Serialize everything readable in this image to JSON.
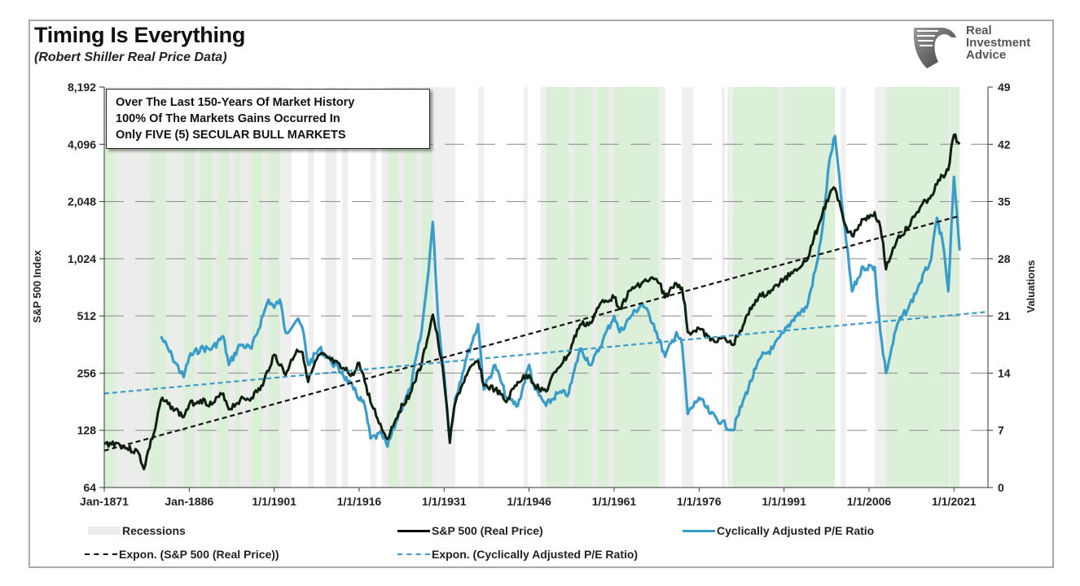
{
  "header": {
    "title": "Timing Is Everything",
    "subtitle": "(Robert Shiller Real Price Data)"
  },
  "logo": {
    "line1": "Real",
    "line2": "Investment",
    "line3": "Advice"
  },
  "annotation": {
    "line1": "Over The Last 150-Years Of Market History",
    "line2": "100% Of The Markets Gains Occurred In",
    "line3": "Only FIVE (5) SECULAR BULL MARKETS"
  },
  "colors": {
    "sp500": "#0f2010",
    "cape": "#3a9cc8",
    "sp500_trend": "#111111",
    "cape_trend": "#3a9cc8",
    "bull_band": "#dcefd8",
    "recession": "#ececec",
    "grid": "#8a8a8a"
  },
  "chart_data": {
    "type": "line",
    "title": "Timing Is Everything",
    "subtitle": "(Robert Shiller Real Price Data)",
    "xlabel": "",
    "ylabel_left": "S&P 500 Index",
    "ylabel_right": "Valuations",
    "x_ticks": [
      "Jan-1871",
      "Jan-1886",
      "1/1/1901",
      "1/1/1916",
      "1/1/1931",
      "1/1/1946",
      "1/1/1961",
      "1/1/1976",
      "1/1/1991",
      "1/1/2006",
      "1/1/2021"
    ],
    "x_tick_years": [
      1871,
      1886,
      1901,
      1916,
      1931,
      1946,
      1961,
      1976,
      1991,
      2006,
      2021
    ],
    "xlim": [
      1871,
      2027
    ],
    "y_left_scale": "log2",
    "y_left_ticks": [
      "64",
      "128",
      "256",
      "512",
      "1,024",
      "2,048",
      "4,096",
      "8,192"
    ],
    "y_left_tick_values": [
      64,
      128,
      256,
      512,
      1024,
      2048,
      4096,
      8192
    ],
    "ylim_left": [
      64,
      8192
    ],
    "y_right_ticks": [
      "0",
      "7",
      "14",
      "21",
      "28",
      "35",
      "42",
      "49"
    ],
    "y_right_tick_values": [
      0,
      7,
      14,
      21,
      28,
      35,
      42,
      49
    ],
    "ylim_right": [
      0,
      49
    ],
    "grid": true,
    "legend_position": "bottom",
    "legend": [
      {
        "label": "Recessions",
        "style": "band"
      },
      {
        "label": "S&P 500 (Real Price)",
        "style": "solid-black"
      },
      {
        "label": "Cyclically Adjusted P/E Ratio",
        "style": "solid-blue"
      },
      {
        "label": "Expon. (S&P 500 (Real Price))",
        "style": "dashed-black"
      },
      {
        "label": "Expon. (Cyclically Adjusted P/E Ratio)",
        "style": "dashed-blue"
      }
    ],
    "bull_markets": [
      [
        1871,
        1902
      ],
      [
        1921,
        1929
      ],
      [
        1949,
        1969
      ],
      [
        1982,
        2000
      ],
      [
        2009,
        2022
      ]
    ],
    "recessions": [
      [
        1873,
        1879
      ],
      [
        1882,
        1885
      ],
      [
        1887,
        1888
      ],
      [
        1890,
        1891
      ],
      [
        1893,
        1894
      ],
      [
        1895,
        1897
      ],
      [
        1899,
        1900
      ],
      [
        1902,
        1904
      ],
      [
        1907,
        1908
      ],
      [
        1910,
        1912
      ],
      [
        1913,
        1914
      ],
      [
        1918,
        1919
      ],
      [
        1920,
        1921
      ],
      [
        1923,
        1924
      ],
      [
        1926,
        1927
      ],
      [
        1929,
        1933
      ],
      [
        1937,
        1938
      ],
      [
        1945,
        1945.8
      ],
      [
        1948,
        1949
      ],
      [
        1953,
        1954
      ],
      [
        1957,
        1958
      ],
      [
        1960,
        1961
      ],
      [
        1969,
        1970
      ],
      [
        1973,
        1975
      ],
      [
        1980,
        1980.6
      ],
      [
        1981,
        1982
      ],
      [
        1990,
        1991
      ],
      [
        2001,
        2001.9
      ],
      [
        2007,
        2009
      ],
      [
        2020,
        2020.4
      ]
    ],
    "series": [
      {
        "name": "S&P 500 (Real Price)",
        "axis": "left",
        "x": [
          1871,
          1873,
          1875,
          1877,
          1878,
          1880,
          1881,
          1883,
          1885,
          1886,
          1888,
          1890,
          1892,
          1893,
          1895,
          1897,
          1899,
          1901,
          1903,
          1905,
          1906,
          1907,
          1909,
          1911,
          1913,
          1915,
          1916,
          1917,
          1918,
          1920,
          1921,
          1923,
          1925,
          1927,
          1928,
          1929,
          1930,
          1931,
          1932,
          1933,
          1935,
          1937,
          1938,
          1940,
          1942,
          1944,
          1946,
          1947,
          1949,
          1951,
          1953,
          1955,
          1957,
          1959,
          1961,
          1962,
          1964,
          1966,
          1968,
          1969,
          1970,
          1972,
          1973,
          1974,
          1976,
          1978,
          1980,
          1982,
          1984,
          1986,
          1987,
          1989,
          1991,
          1993,
          1995,
          1997,
          1999,
          2000,
          2001,
          2002,
          2003,
          2005,
          2007,
          2008,
          2009,
          2011,
          2013,
          2015,
          2017,
          2019,
          2020,
          2021,
          2022
        ],
        "values": [
          108,
          110,
          103,
          98,
          80,
          130,
          185,
          170,
          150,
          175,
          185,
          175,
          200,
          165,
          185,
          190,
          220,
          320,
          250,
          340,
          330,
          230,
          320,
          300,
          270,
          250,
          290,
          230,
          180,
          130,
          115,
          160,
          200,
          280,
          380,
          520,
          360,
          230,
          110,
          180,
          250,
          300,
          220,
          210,
          180,
          230,
          250,
          220,
          205,
          270,
          320,
          460,
          470,
          620,
          640,
          560,
          700,
          770,
          800,
          760,
          640,
          760,
          720,
          420,
          440,
          380,
          390,
          360,
          470,
          620,
          650,
          700,
          800,
          900,
          1000,
          1500,
          2200,
          2400,
          1900,
          1500,
          1350,
          1650,
          1800,
          1500,
          900,
          1300,
          1500,
          1900,
          2200,
          2800,
          3000,
          4600,
          4100
        ]
      },
      {
        "name": "Cyclically Adjusted P/E Ratio",
        "axis": "right",
        "x": [
          1881,
          1883,
          1885,
          1886,
          1888,
          1890,
          1892,
          1893,
          1895,
          1897,
          1899,
          1900,
          1901,
          1902,
          1903,
          1905,
          1906,
          1907,
          1909,
          1911,
          1913,
          1915,
          1917,
          1918,
          1920,
          1921,
          1923,
          1925,
          1927,
          1928,
          1929,
          1930,
          1931,
          1932,
          1933,
          1935,
          1937,
          1938,
          1940,
          1942,
          1944,
          1946,
          1947,
          1949,
          1951,
          1953,
          1955,
          1957,
          1959,
          1961,
          1962,
          1964,
          1966,
          1968,
          1970,
          1972,
          1973,
          1974,
          1976,
          1978,
          1980,
          1982,
          1984,
          1986,
          1987,
          1989,
          1991,
          1993,
          1995,
          1997,
          1998,
          1999,
          2000,
          2001,
          2002,
          2003,
          2005,
          2007,
          2008,
          2009,
          2011,
          2013,
          2015,
          2017,
          2018,
          2019,
          2020,
          2021,
          2022
        ],
        "values": [
          18.5,
          16,
          13.5,
          16,
          17,
          17,
          18.5,
          15,
          17.5,
          17,
          21,
          23,
          22,
          23,
          19,
          20.5,
          19.5,
          15,
          17,
          15.5,
          14,
          12,
          10,
          6,
          6.5,
          5,
          9,
          12,
          19,
          25,
          32.5,
          20,
          14,
          5.8,
          11,
          16,
          20,
          12,
          15,
          11,
          10,
          15,
          12,
          10,
          11.5,
          11.5,
          17,
          15,
          18,
          21,
          19,
          21,
          22.5,
          20,
          16,
          19,
          17.5,
          9,
          11,
          9,
          8,
          7,
          11,
          14.5,
          16,
          17,
          19,
          21,
          22,
          28,
          33,
          40,
          43,
          36,
          30,
          24,
          27,
          27,
          19,
          14,
          20,
          22,
          25,
          28,
          33,
          30,
          24,
          38,
          29
        ]
      },
      {
        "name": "Expon. (S&P 500 (Real Price))",
        "axis": "left",
        "x": [
          1871,
          2022
        ],
        "values": [
          100,
          1720
        ]
      },
      {
        "name": "Expon. (Cyclically Adjusted P/E Ratio)",
        "axis": "right",
        "x": [
          1871,
          2027
        ],
        "values": [
          11.5,
          21.5
        ]
      }
    ]
  }
}
